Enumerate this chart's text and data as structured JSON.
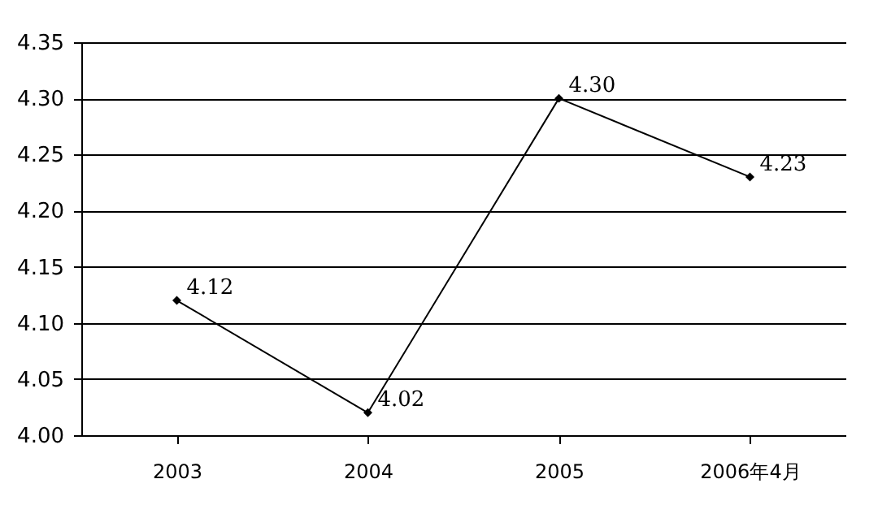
{
  "chart_data": {
    "type": "line",
    "categories": [
      "2003",
      "2004",
      "2005",
      "2006年4月"
    ],
    "series": [
      {
        "color": "#000000",
        "values": [
          4.12,
          4.02,
          4.3,
          4.23
        ],
        "value_labels": [
          "4.12",
          "4.02",
          "4.30",
          "4.23"
        ]
      }
    ],
    "ylim": [
      4.0,
      4.35
    ],
    "yticks": [
      {
        "value": 4.0,
        "label": "4.00"
      },
      {
        "value": 4.05,
        "label": "4.05"
      },
      {
        "value": 4.1,
        "label": "4.10"
      },
      {
        "value": 4.15,
        "label": "4.15"
      },
      {
        "value": 4.2,
        "label": "4.20"
      },
      {
        "value": 4.25,
        "label": "4.25"
      },
      {
        "value": 4.3,
        "label": "4.30"
      },
      {
        "value": 4.35,
        "label": "4.35"
      }
    ],
    "grid": "y",
    "marker": "diamond",
    "line_style": "solid"
  }
}
